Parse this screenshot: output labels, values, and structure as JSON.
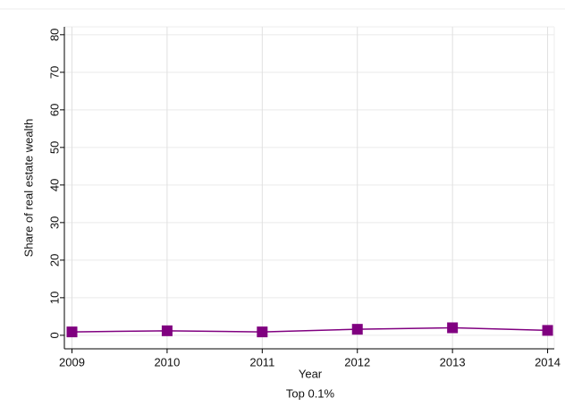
{
  "chart_data": {
    "type": "line",
    "title": "Top 0.1%",
    "x_label": "Year",
    "y_label": "Share of real estate wealth",
    "x": [
      2009,
      2010,
      2011,
      2012,
      2013,
      2014
    ],
    "series": [
      {
        "name": "Top 0.1%",
        "color": "#800080",
        "values": [
          0.9,
          1.2,
          0.9,
          1.6,
          2.0,
          1.3
        ]
      }
    ],
    "xlim": [
      2008.92,
      2014.07
    ],
    "xticks": [
      2009,
      2010,
      2011,
      2012,
      2013,
      2014
    ],
    "ylim": [
      -3.6,
      82.1
    ],
    "yticks": [
      0,
      10,
      20,
      30,
      40,
      50,
      60,
      70,
      80
    ],
    "grid": true
  }
}
